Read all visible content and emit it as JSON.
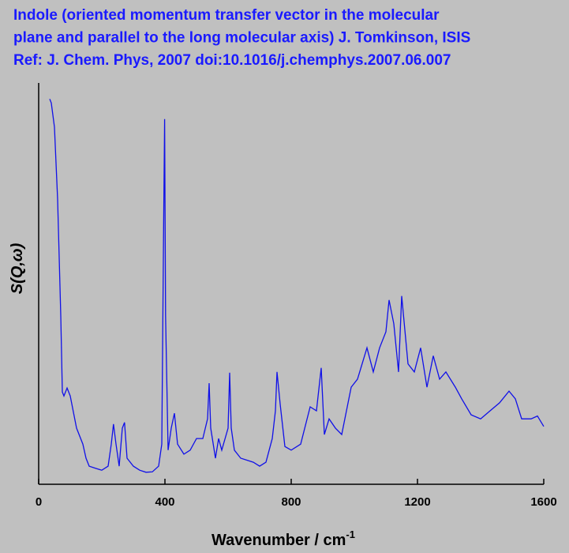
{
  "chart_data": {
    "type": "line",
    "title": [
      "Indole (oriented momentum transfer vector in the molecular",
      "plane and parallel to the long molecular axis)  J. Tomkinson, ISIS",
      "Ref: J. Chem. Phys, 2007 doi:10.1016/j.chemphys.2007.06.007"
    ],
    "xlabel": "Wavenumber / cm",
    "xlabel_superscript": "-1",
    "ylabel": "S(Q,ω)",
    "xlim": [
      0,
      1600
    ],
    "xticks": [
      0,
      400,
      800,
      1200,
      1600
    ],
    "ylim": [
      0,
      100
    ],
    "series": [
      {
        "color": "#1010e8",
        "x": [
          35,
          40,
          50,
          60,
          70,
          75,
          80,
          90,
          100,
          110,
          120,
          140,
          150,
          160,
          180,
          200,
          220,
          230,
          237,
          245,
          255,
          265,
          272,
          280,
          300,
          320,
          340,
          360,
          380,
          390,
          396,
          399,
          402,
          410,
          420,
          430,
          440,
          460,
          480,
          500,
          520,
          535,
          540,
          545,
          560,
          570,
          580,
          600,
          605,
          610,
          620,
          640,
          680,
          700,
          720,
          740,
          750,
          755,
          765,
          780,
          800,
          830,
          860,
          880,
          895,
          905,
          920,
          940,
          960,
          990,
          1010,
          1040,
          1060,
          1080,
          1100,
          1110,
          1125,
          1140,
          1150,
          1170,
          1190,
          1210,
          1230,
          1250,
          1270,
          1290,
          1320,
          1340,
          1370,
          1400,
          1430,
          1460,
          1490,
          1510,
          1530,
          1560,
          1580,
          1600
        ],
        "values": [
          96,
          95,
          89,
          71,
          42,
          23,
          22,
          24,
          22,
          18,
          14,
          10,
          6.5,
          4.5,
          4,
          3.5,
          4.5,
          10,
          15,
          10,
          4.5,
          14,
          15.4,
          6.5,
          4.5,
          3.5,
          3,
          3.1,
          4.5,
          10,
          65.6,
          91,
          42,
          8.5,
          14,
          17.7,
          10,
          7.5,
          8.5,
          11.4,
          11.4,
          16.3,
          25.2,
          14,
          6.5,
          11.4,
          8.5,
          14,
          27.8,
          14,
          8.5,
          6.5,
          5.5,
          4.5,
          5.5,
          11.4,
          18.3,
          28,
          20,
          9.4,
          8.5,
          10,
          19.3,
          18.3,
          29,
          12.4,
          16.3,
          14,
          12.4,
          24.2,
          26.2,
          34,
          28,
          34,
          38,
          45.9,
          40,
          28,
          46.9,
          30,
          28,
          34,
          24.2,
          32,
          26.2,
          28,
          24.2,
          21.3,
          17.3,
          16.3,
          18.3,
          20.3,
          23.2,
          21.3,
          16.3,
          16.3,
          17,
          14.4
        ]
      }
    ]
  }
}
